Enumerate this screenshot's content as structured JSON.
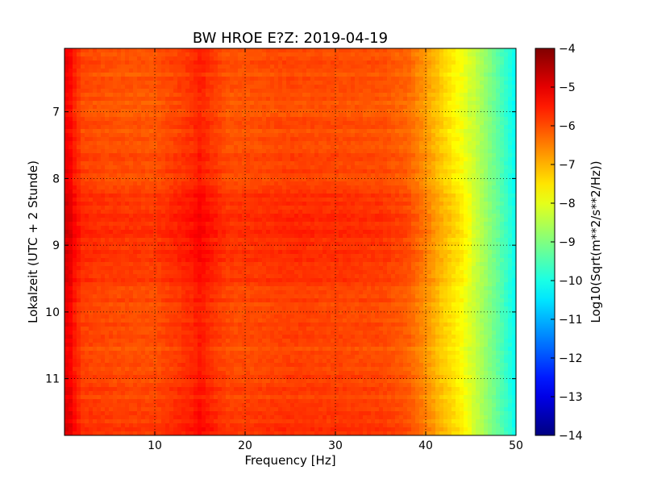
{
  "chart_data": {
    "type": "heatmap",
    "title": "BW HROE E?Z: 2019-04-19",
    "xlabel": "Frequency [Hz]",
    "ylabel": "Lokalzeit (UTC + 2 Stunde)",
    "xlim": [
      0,
      50
    ],
    "ylim": [
      6.05,
      11.85
    ],
    "x_ticks": [
      10,
      20,
      30,
      40,
      50
    ],
    "x_tick_labels": [
      "10",
      "20",
      "30",
      "40",
      "50"
    ],
    "y_ticks": [
      7,
      8,
      9,
      10,
      11
    ],
    "y_tick_labels": [
      "7",
      "8",
      "9",
      "10",
      "11"
    ],
    "y_inverted": true,
    "grid": true,
    "colormap": "jet",
    "colorbar": {
      "label": "Log10(Sqrt(m**2/s**2/Hz))",
      "min": -14,
      "max": -4,
      "ticks": [
        -4,
        -5,
        -6,
        -7,
        -8,
        -9,
        -10,
        -11,
        -12,
        -13,
        -14
      ],
      "tick_labels": [
        "−4",
        "−5",
        "−6",
        "−7",
        "−8",
        "−9",
        "−10",
        "−11",
        "−12",
        "−13",
        "−14"
      ]
    },
    "frequency_profile": {
      "frequency_hz": [
        0,
        0.5,
        1,
        2,
        5,
        10,
        14,
        15,
        16,
        18,
        20,
        25,
        30,
        35,
        38,
        40,
        42,
        44,
        45,
        46,
        48,
        50
      ],
      "log10_amplitude": [
        -5.1,
        -5.0,
        -5.4,
        -5.8,
        -5.9,
        -5.95,
        -5.6,
        -5.4,
        -5.6,
        -5.9,
        -5.9,
        -5.8,
        -5.85,
        -5.9,
        -6.1,
        -6.6,
        -7.2,
        -7.7,
        -8.1,
        -8.5,
        -9.3,
        -10.2
      ]
    },
    "time_profile": {
      "hour": [
        6.05,
        7.0,
        8.0,
        8.4,
        8.8,
        9.2,
        9.6,
        10.0,
        10.5,
        11.0,
        11.5,
        11.85
      ],
      "log10_offset": [
        -0.15,
        -0.2,
        -0.05,
        0.15,
        0.2,
        0.15,
        0.05,
        -0.05,
        -0.1,
        -0.05,
        0.05,
        0.1
      ]
    }
  }
}
